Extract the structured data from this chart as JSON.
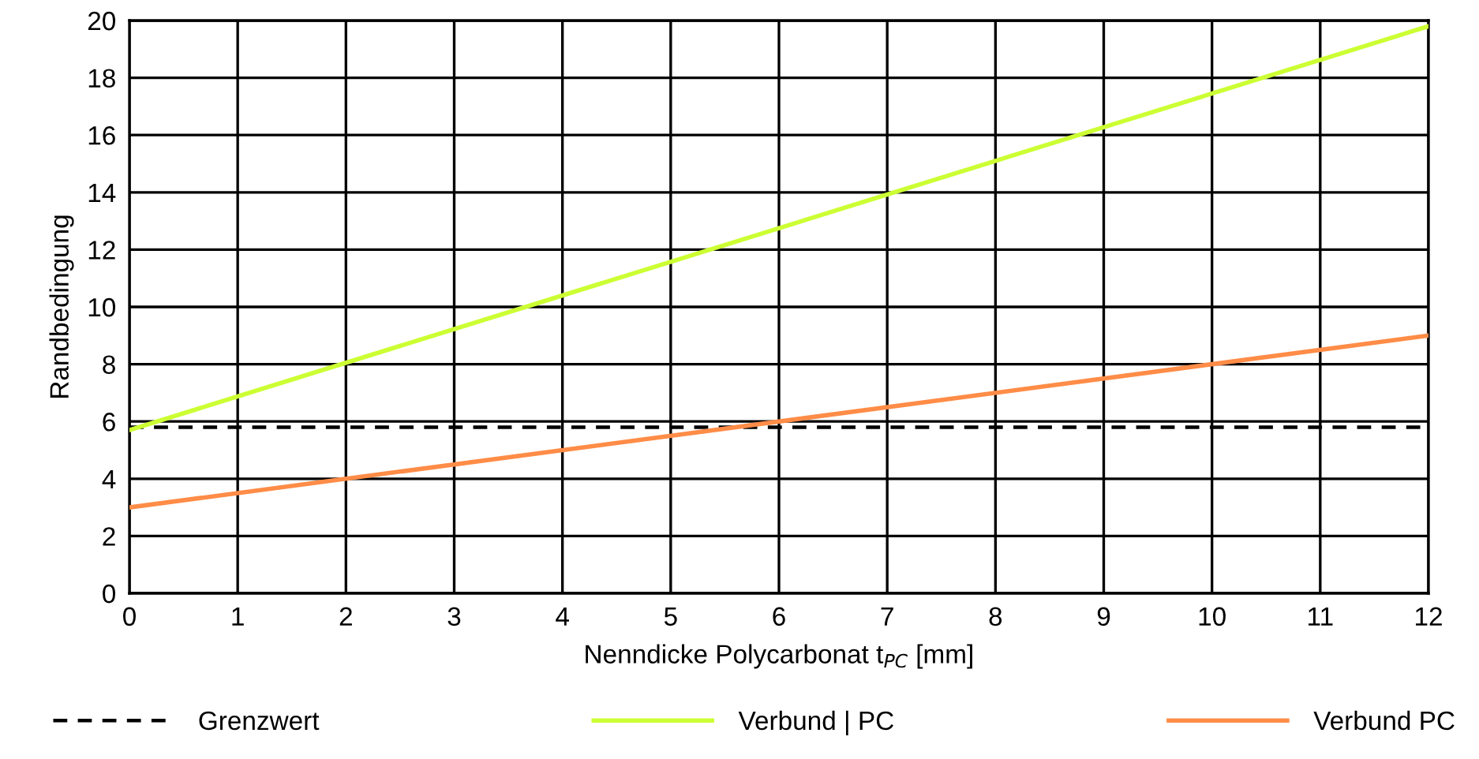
{
  "chart_data": {
    "type": "line",
    "xlabel": "Nenndicke Polycarbonat t$_{PC}$ [mm]",
    "ylabel": "Randbedingung",
    "x": [
      0,
      12
    ],
    "series": [
      {
        "name": "Grenzwert",
        "color": "#000000",
        "values": [
          5.8,
          5.8
        ],
        "line_style": "dashed"
      },
      {
        "name": "Verbund | PC",
        "color": "#ccff33",
        "values": [
          5.7,
          19.8
        ],
        "line_style": "solid"
      },
      {
        "name": "Verbund PC",
        "color": "#ff8c47",
        "values": [
          3,
          9
        ],
        "line_style": "solid"
      }
    ],
    "xlim": [
      0,
      12
    ],
    "xticks": [
      0,
      1,
      2,
      3,
      4,
      5,
      6,
      7,
      8,
      9,
      10,
      11,
      12
    ],
    "ylim": [
      0,
      20
    ],
    "yticks": [
      0,
      2,
      4,
      6,
      8,
      10,
      12,
      14,
      16,
      18,
      20
    ],
    "grid": true,
    "legend": "bottom",
    "marker": "none"
  }
}
